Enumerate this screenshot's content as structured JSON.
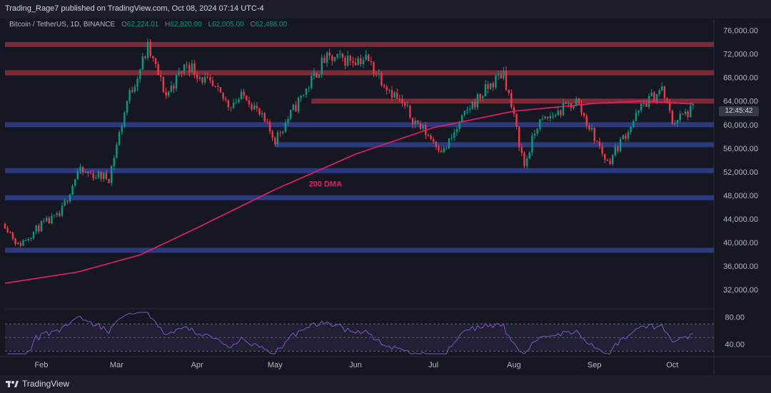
{
  "header": {
    "published": "Trading_Rage7 published on TradingView.com, Oct 08, 2024 07:14 UTC-4"
  },
  "symbol": {
    "name": "Bitcoin / TetherUS, 1D, BINANCE",
    "o_label": "O",
    "o": "62,224.01",
    "h_label": "H",
    "h": "62,820.00",
    "l_label": "L",
    "l": "62,005.00",
    "c_label": "C",
    "c": "62,488.00"
  },
  "timer": "12:45:42",
  "footer": {
    "brand": "TradingView"
  },
  "colors": {
    "up": "#089981",
    "down": "#f23645",
    "dma": "#e91e63",
    "support": "#2f3f8f",
    "resistance": "#8c2f3c",
    "rsi": "#7e57c2"
  },
  "chart_data": {
    "type": "candlestick",
    "y_axis": {
      "ticks": [
        32000,
        36000,
        40000,
        44000,
        48000,
        52000,
        56000,
        60000,
        64000,
        68000,
        72000,
        76000
      ],
      "tick_labels": [
        "32,000.00",
        "36,000.00",
        "40,000.00",
        "44,000.00",
        "48,000.00",
        "52,000.00",
        "56,000.00",
        "60,000.00",
        "64,000.00",
        "68,000.00",
        "72,000.00",
        "76,000.00"
      ],
      "range": [
        29000,
        78000
      ]
    },
    "x_axis": {
      "months": [
        "Feb",
        "Mar",
        "Apr",
        "May",
        "Jun",
        "Jul",
        "Aug",
        "Sep",
        "Oct"
      ],
      "range": [
        "2024-01-18",
        "2024-10-17"
      ]
    },
    "horizontal_levels": [
      {
        "kind": "resistance",
        "value": 73600
      },
      {
        "kind": "resistance",
        "value": 68800
      },
      {
        "kind": "resistance",
        "value": 64000,
        "from": "2024-05-15"
      },
      {
        "kind": "support",
        "value": 60000
      },
      {
        "kind": "support",
        "value": 56600,
        "from": "2024-05-01"
      },
      {
        "kind": "support",
        "value": 52200
      },
      {
        "kind": "support",
        "value": 47600
      },
      {
        "kind": "support",
        "value": 38700
      }
    ],
    "ma_label": "200 DMA",
    "ma_points": [
      [
        "2024-01-18",
        33100
      ],
      [
        "2024-02-15",
        35000
      ],
      [
        "2024-03-10",
        37900
      ],
      [
        "2024-04-01",
        42500
      ],
      [
        "2024-05-01",
        49000
      ],
      [
        "2024-06-01",
        55000
      ],
      [
        "2024-07-01",
        59500
      ],
      [
        "2024-08-01",
        62300
      ],
      [
        "2024-09-01",
        63600
      ],
      [
        "2024-09-20",
        64000
      ],
      [
        "2024-10-09",
        63500
      ]
    ],
    "price_path": [
      [
        "2024-01-18",
        43200
      ],
      [
        "2024-01-23",
        39500
      ],
      [
        "2024-02-01",
        43000
      ],
      [
        "2024-02-08",
        44500
      ],
      [
        "2024-02-15",
        52000
      ],
      [
        "2024-02-27",
        51000
      ],
      [
        "2024-03-05",
        64000
      ],
      [
        "2024-03-13",
        73000
      ],
      [
        "2024-03-20",
        65000
      ],
      [
        "2024-03-28",
        70500
      ],
      [
        "2024-04-13",
        63500
      ],
      [
        "2024-04-20",
        65000
      ],
      [
        "2024-05-01",
        57500
      ],
      [
        "2024-05-20",
        71000
      ],
      [
        "2024-06-05",
        71200
      ],
      [
        "2024-06-24",
        60500
      ],
      [
        "2024-07-05",
        55500
      ],
      [
        "2024-07-15",
        63000
      ],
      [
        "2024-07-28",
        69000
      ],
      [
        "2024-08-05",
        53000
      ],
      [
        "2024-08-10",
        60000
      ],
      [
        "2024-08-25",
        64000
      ],
      [
        "2024-09-06",
        53500
      ],
      [
        "2024-09-20",
        63500
      ],
      [
        "2024-09-27",
        66000
      ],
      [
        "2024-10-01",
        60500
      ],
      [
        "2024-10-09",
        62488
      ]
    ],
    "rsi": {
      "ticks": [
        80,
        40
      ],
      "tick_labels": [
        "80.00",
        "40.00"
      ],
      "overbought": 70,
      "oversold": 30,
      "range": [
        25,
        88
      ]
    }
  }
}
